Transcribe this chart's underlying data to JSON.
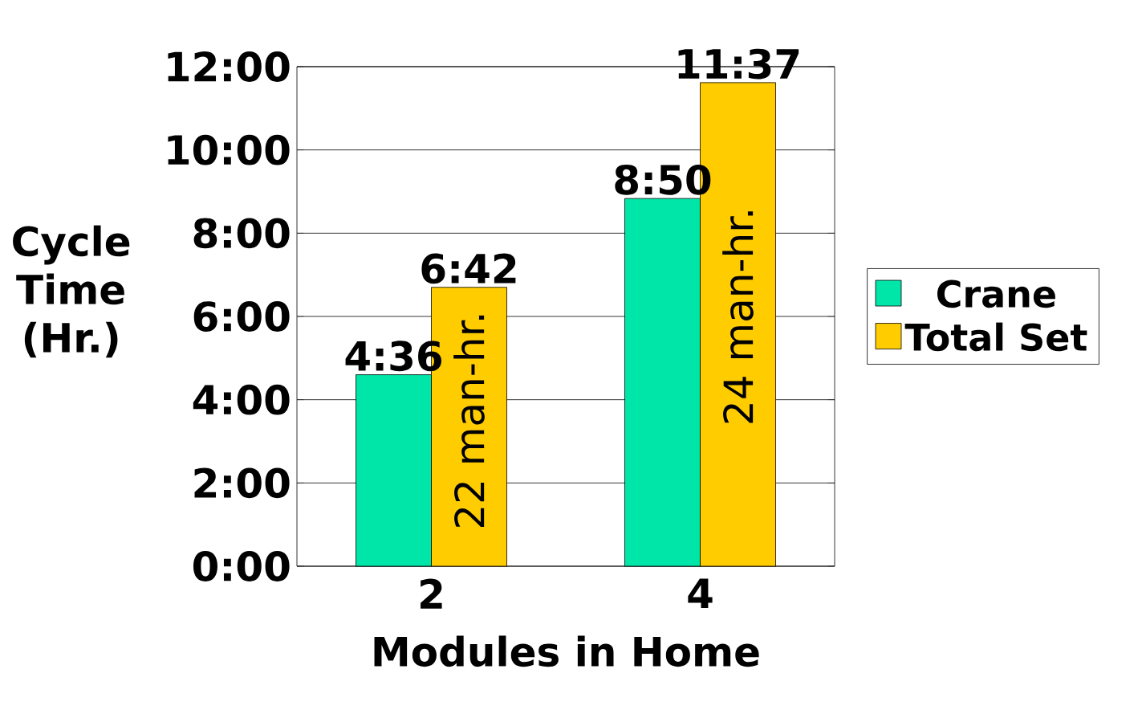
{
  "chart_data": {
    "type": "bar",
    "xlabel": "Modules in Home",
    "ylabel": "Cycle Time (Hr.)",
    "categories": [
      "2",
      "4"
    ],
    "series": [
      {
        "name": "Crane",
        "color": "#00e5a8",
        "values": [
          4.6,
          8.8333
        ],
        "value_labels": [
          "4:36",
          "8:50"
        ]
      },
      {
        "name": "Total Set",
        "color": "#ffcc00",
        "values": [
          6.7,
          11.6167
        ],
        "value_labels": [
          "6:42",
          "11:37"
        ]
      }
    ],
    "ylim": [
      0,
      12
    ],
    "yticks": [
      {
        "value": 0,
        "label": "0:00"
      },
      {
        "value": 2,
        "label": "2:00"
      },
      {
        "value": 4,
        "label": "4:00"
      },
      {
        "value": 6,
        "label": "6:00"
      },
      {
        "value": 8,
        "label": "8:00"
      },
      {
        "value": 10,
        "label": "10:00"
      },
      {
        "value": 12,
        "label": "12:00"
      }
    ],
    "grid": "y",
    "legend": "right",
    "annotations": [
      {
        "text": "22 man-hr.",
        "x": "2",
        "y": 3.5
      },
      {
        "text": "24 man-hr.",
        "x": "4",
        "y": 6
      }
    ]
  }
}
